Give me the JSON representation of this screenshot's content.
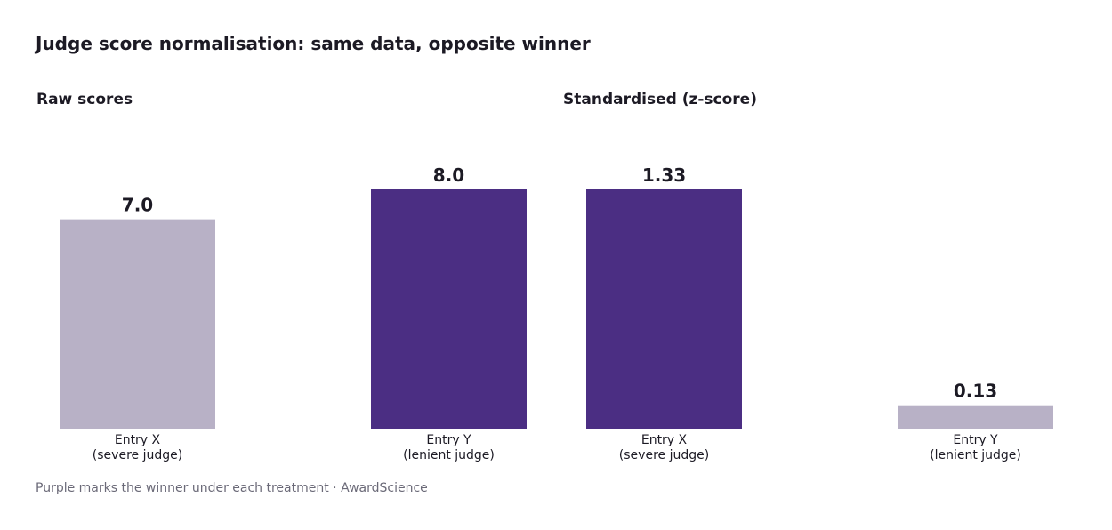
{
  "title": "Judge score normalisation: same data, opposite winner",
  "footnote": "Purple marks the winner under each treatment  ·  AwardScience",
  "colors": {
    "winner": "#4b2e83",
    "other": "#b8b1c6",
    "text": "#1c1a24",
    "muted": "#6b6a78"
  },
  "chart_data": [
    {
      "type": "bar",
      "title": "Raw scores",
      "categories": [
        "Entry X\n(severe judge)",
        "Entry Y\n(lenient judge)"
      ],
      "values": [
        7.0,
        8.0
      ],
      "value_labels": [
        "7.0",
        "8.0"
      ],
      "winner_index": 1,
      "ylim": [
        0,
        8.0
      ]
    },
    {
      "type": "bar",
      "title": "Standardised (z-score)",
      "categories": [
        "Entry X\n(severe judge)",
        "Entry Y\n(lenient judge)"
      ],
      "values": [
        1.33,
        0.13
      ],
      "value_labels": [
        "1.33",
        "0.13"
      ],
      "winner_index": 0,
      "ylim": [
        0,
        1.33
      ]
    }
  ]
}
